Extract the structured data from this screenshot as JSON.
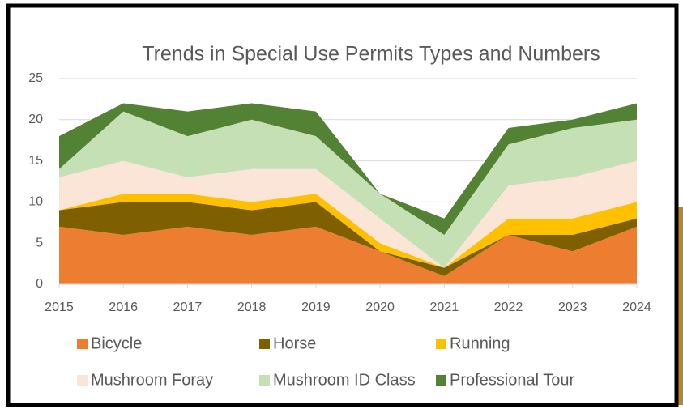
{
  "chart_data": {
    "type": "stacked_area",
    "title": "Trends in Special Use Permits Types and Numbers",
    "categories": [
      "2015",
      "2016",
      "2017",
      "2018",
      "2019",
      "2020",
      "2021",
      "2022",
      "2023",
      "2024"
    ],
    "series": [
      {
        "name": "Bicycle",
        "color": "#ed7d31",
        "values": [
          7,
          6,
          7,
          6,
          7,
          4,
          1,
          6,
          4,
          7
        ]
      },
      {
        "name": "Horse",
        "color": "#7f6000",
        "values": [
          2,
          4,
          3,
          3,
          3,
          0,
          1,
          0,
          2,
          1
        ]
      },
      {
        "name": "Running",
        "color": "#ffc000",
        "values": [
          0,
          1,
          1,
          1,
          1,
          1,
          0,
          2,
          2,
          2
        ]
      },
      {
        "name": "Mushroom Foray",
        "color": "#fbe5d6",
        "values": [
          4,
          4,
          2,
          4,
          3,
          3,
          0,
          4,
          5,
          5
        ]
      },
      {
        "name": "Mushroom ID Class",
        "color": "#c5e0b4",
        "values": [
          1,
          6,
          5,
          6,
          4,
          3,
          4,
          5,
          6,
          5
        ]
      },
      {
        "name": "Professional Tour",
        "color": "#548235",
        "values": [
          4,
          1,
          3,
          2,
          3,
          0,
          2,
          2,
          1,
          2
        ]
      }
    ],
    "ylim": [
      0,
      25
    ],
    "yticks": [
      0,
      5,
      10,
      15,
      20,
      25
    ],
    "grid": true,
    "legend": "bottom"
  }
}
